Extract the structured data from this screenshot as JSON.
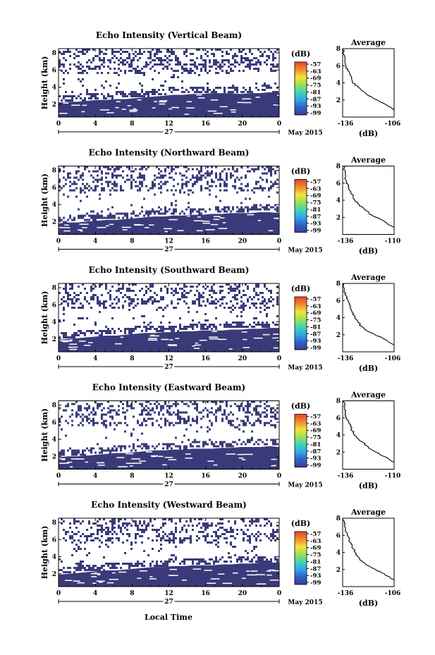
{
  "x_axis_label": "Local Time",
  "date_label": "May 2015",
  "day_label": "27",
  "time_ticks": [
    "0",
    "4",
    "8",
    "12",
    "16",
    "20",
    "0"
  ],
  "height_label": "Height (km)",
  "height_ticks": [
    "2",
    "4",
    "6",
    "8"
  ],
  "colorbar_unit": "(dB)",
  "colorbar_ticks": [
    "-57",
    "-63",
    "-69",
    "-75",
    "-81",
    "-87",
    "-93",
    "-99"
  ],
  "colors": {
    "echo_fill": "#3a3a7a",
    "colorbar_stops": [
      "#f0402a",
      "#f08a2c",
      "#f5e23a",
      "#9ee052",
      "#3fd6b0",
      "#2fa8e6",
      "#2f62c8",
      "#3d3a9a"
    ]
  },
  "chart_data": [
    {
      "type": "heatmap",
      "title": "Echo Intensity (Vertical Beam)",
      "xlabel": "",
      "ylabel": "Height (km)",
      "x_range_hours": [
        0,
        24
      ],
      "ylim_km": [
        0.5,
        8.5
      ],
      "colorbar_unit": "(dB)",
      "colorbar_range": [
        -99,
        -57
      ],
      "dense_layer_top_km": [
        2.2,
        2.3,
        2.3,
        2.4,
        2.5,
        2.5,
        2.6,
        2.6,
        2.7,
        2.8,
        2.9,
        3.0,
        3.1,
        3.1,
        3.2,
        3.2,
        3.3,
        3.3,
        3.3,
        3.2,
        3.3,
        3.3,
        3.4,
        3.3
      ],
      "profile": {
        "title": "Average",
        "xlabel": "(dB)",
        "xticks": [
          "-136",
          "-106"
        ],
        "xlim": [
          -136,
          -106
        ],
        "ylim_km": [
          0,
          8
        ],
        "heights_km": [
          0.8,
          1.5,
          2.0,
          2.5,
          3.0,
          3.5,
          4.0,
          4.5,
          5.0,
          5.5,
          6.0,
          6.5,
          7.0,
          7.5,
          8.0
        ],
        "values_db": [
          -106,
          -111,
          -116,
          -121,
          -124,
          -127,
          -130,
          -131,
          -132,
          -133,
          -134,
          -134.5,
          -135,
          -135.5,
          -135.5
        ]
      }
    },
    {
      "type": "heatmap",
      "title": "Echo Intensity (Northward Beam)",
      "xlabel": "",
      "ylabel": "Height (km)",
      "x_range_hours": [
        0,
        24
      ],
      "ylim_km": [
        0.5,
        8.5
      ],
      "colorbar_unit": "(dB)",
      "colorbar_range": [
        -99,
        -57
      ],
      "dense_layer_top_km": [
        1.8,
        1.9,
        1.9,
        2.0,
        2.1,
        2.2,
        2.2,
        2.3,
        2.4,
        2.5,
        2.6,
        2.6,
        2.7,
        2.7,
        2.8,
        2.8,
        2.9,
        2.9,
        3.0,
        3.0,
        3.0,
        3.1,
        3.1,
        3.0
      ],
      "profile": {
        "title": "Average",
        "xlabel": "(dB)",
        "xticks": [
          "-136",
          "-110"
        ],
        "xlim": [
          -136,
          -110
        ],
        "ylim_km": [
          0,
          8
        ],
        "heights_km": [
          0.8,
          1.5,
          2.0,
          2.5,
          3.0,
          3.5,
          4.0,
          4.5,
          5.0,
          5.5,
          6.0,
          6.5,
          7.0,
          7.5,
          8.0
        ],
        "values_db": [
          -110,
          -115,
          -119,
          -123,
          -125,
          -128,
          -130,
          -131,
          -132,
          -133,
          -134,
          -134.5,
          -135,
          -135,
          -135.5
        ]
      }
    },
    {
      "type": "heatmap",
      "title": "Echo Intensity (Southward Beam)",
      "xlabel": "",
      "ylabel": "Height (km)",
      "x_range_hours": [
        0,
        24
      ],
      "ylim_km": [
        0.5,
        8.5
      ],
      "colorbar_unit": "(dB)",
      "colorbar_range": [
        -99,
        -57
      ],
      "dense_layer_top_km": [
        1.9,
        2.0,
        2.1,
        2.2,
        2.3,
        2.4,
        2.4,
        2.5,
        2.6,
        2.7,
        2.7,
        2.8,
        2.8,
        2.9,
        2.9,
        3.0,
        3.0,
        3.0,
        3.1,
        3.1,
        3.2,
        3.2,
        3.3,
        3.3
      ],
      "profile": {
        "title": "Average",
        "xlabel": "(dB)",
        "xticks": [
          "-136",
          "-106"
        ],
        "xlim": [
          -136,
          -106
        ],
        "ylim_km": [
          0,
          8
        ],
        "heights_km": [
          0.8,
          1.5,
          2.0,
          2.5,
          3.0,
          3.5,
          4.0,
          4.5,
          5.0,
          5.5,
          6.0,
          6.5,
          7.0,
          7.5,
          8.0
        ],
        "values_db": [
          -106,
          -112,
          -117,
          -122,
          -125,
          -127,
          -129,
          -130,
          -131,
          -132,
          -133,
          -134,
          -135,
          -135,
          -135.5
        ]
      }
    },
    {
      "type": "heatmap",
      "title": "Echo Intensity (Eastward Beam)",
      "xlabel": "",
      "ylabel": "Height (km)",
      "x_range_hours": [
        0,
        24
      ],
      "ylim_km": [
        0.5,
        8.5
      ],
      "colorbar_unit": "(dB)",
      "colorbar_range": [
        -99,
        -57
      ],
      "dense_layer_top_km": [
        1.9,
        2.0,
        2.0,
        2.1,
        2.2,
        2.3,
        2.4,
        2.4,
        2.5,
        2.6,
        2.7,
        2.7,
        2.8,
        2.8,
        2.9,
        2.9,
        2.9,
        3.0,
        3.0,
        3.1,
        3.1,
        3.1,
        3.2,
        3.1
      ],
      "profile": {
        "title": "Average",
        "xlabel": "(dB)",
        "xticks": [
          "-136",
          "-110"
        ],
        "xlim": [
          -136,
          -110
        ],
        "ylim_km": [
          0,
          8
        ],
        "heights_km": [
          0.8,
          1.5,
          2.0,
          2.5,
          3.0,
          3.5,
          4.0,
          4.5,
          5.0,
          5.5,
          6.0,
          6.5,
          7.0,
          7.5,
          8.0
        ],
        "values_db": [
          -110,
          -115,
          -119,
          -123,
          -125,
          -128,
          -130,
          -131,
          -132,
          -133,
          -134,
          -134.5,
          -135,
          -135,
          -135.5
        ]
      }
    },
    {
      "type": "heatmap",
      "title": "Echo Intensity (Westward Beam)",
      "xlabel": "Local Time",
      "ylabel": "Height (km)",
      "x_range_hours": [
        0,
        24
      ],
      "ylim_km": [
        0.5,
        8.5
      ],
      "colorbar_unit": "(dB)",
      "colorbar_range": [
        -99,
        -57
      ],
      "dense_layer_top_km": [
        1.9,
        2.0,
        2.1,
        2.2,
        2.3,
        2.4,
        2.4,
        2.5,
        2.6,
        2.7,
        2.8,
        2.8,
        2.9,
        2.9,
        3.0,
        3.0,
        3.0,
        3.1,
        3.1,
        3.2,
        3.2,
        3.3,
        3.3,
        3.3
      ],
      "profile": {
        "title": "Average",
        "xlabel": "(dB)",
        "xticks": [
          "-136",
          "-106"
        ],
        "xlim": [
          -136,
          -106
        ],
        "ylim_km": [
          0,
          8
        ],
        "heights_km": [
          0.8,
          1.5,
          2.0,
          2.5,
          3.0,
          3.5,
          4.0,
          4.5,
          5.0,
          5.5,
          6.0,
          6.5,
          7.0,
          7.5,
          8.0
        ],
        "values_db": [
          -106,
          -112,
          -117,
          -122,
          -125,
          -127,
          -129,
          -130,
          -131,
          -132,
          -133,
          -134,
          -135,
          -135,
          -135.5
        ]
      }
    }
  ]
}
